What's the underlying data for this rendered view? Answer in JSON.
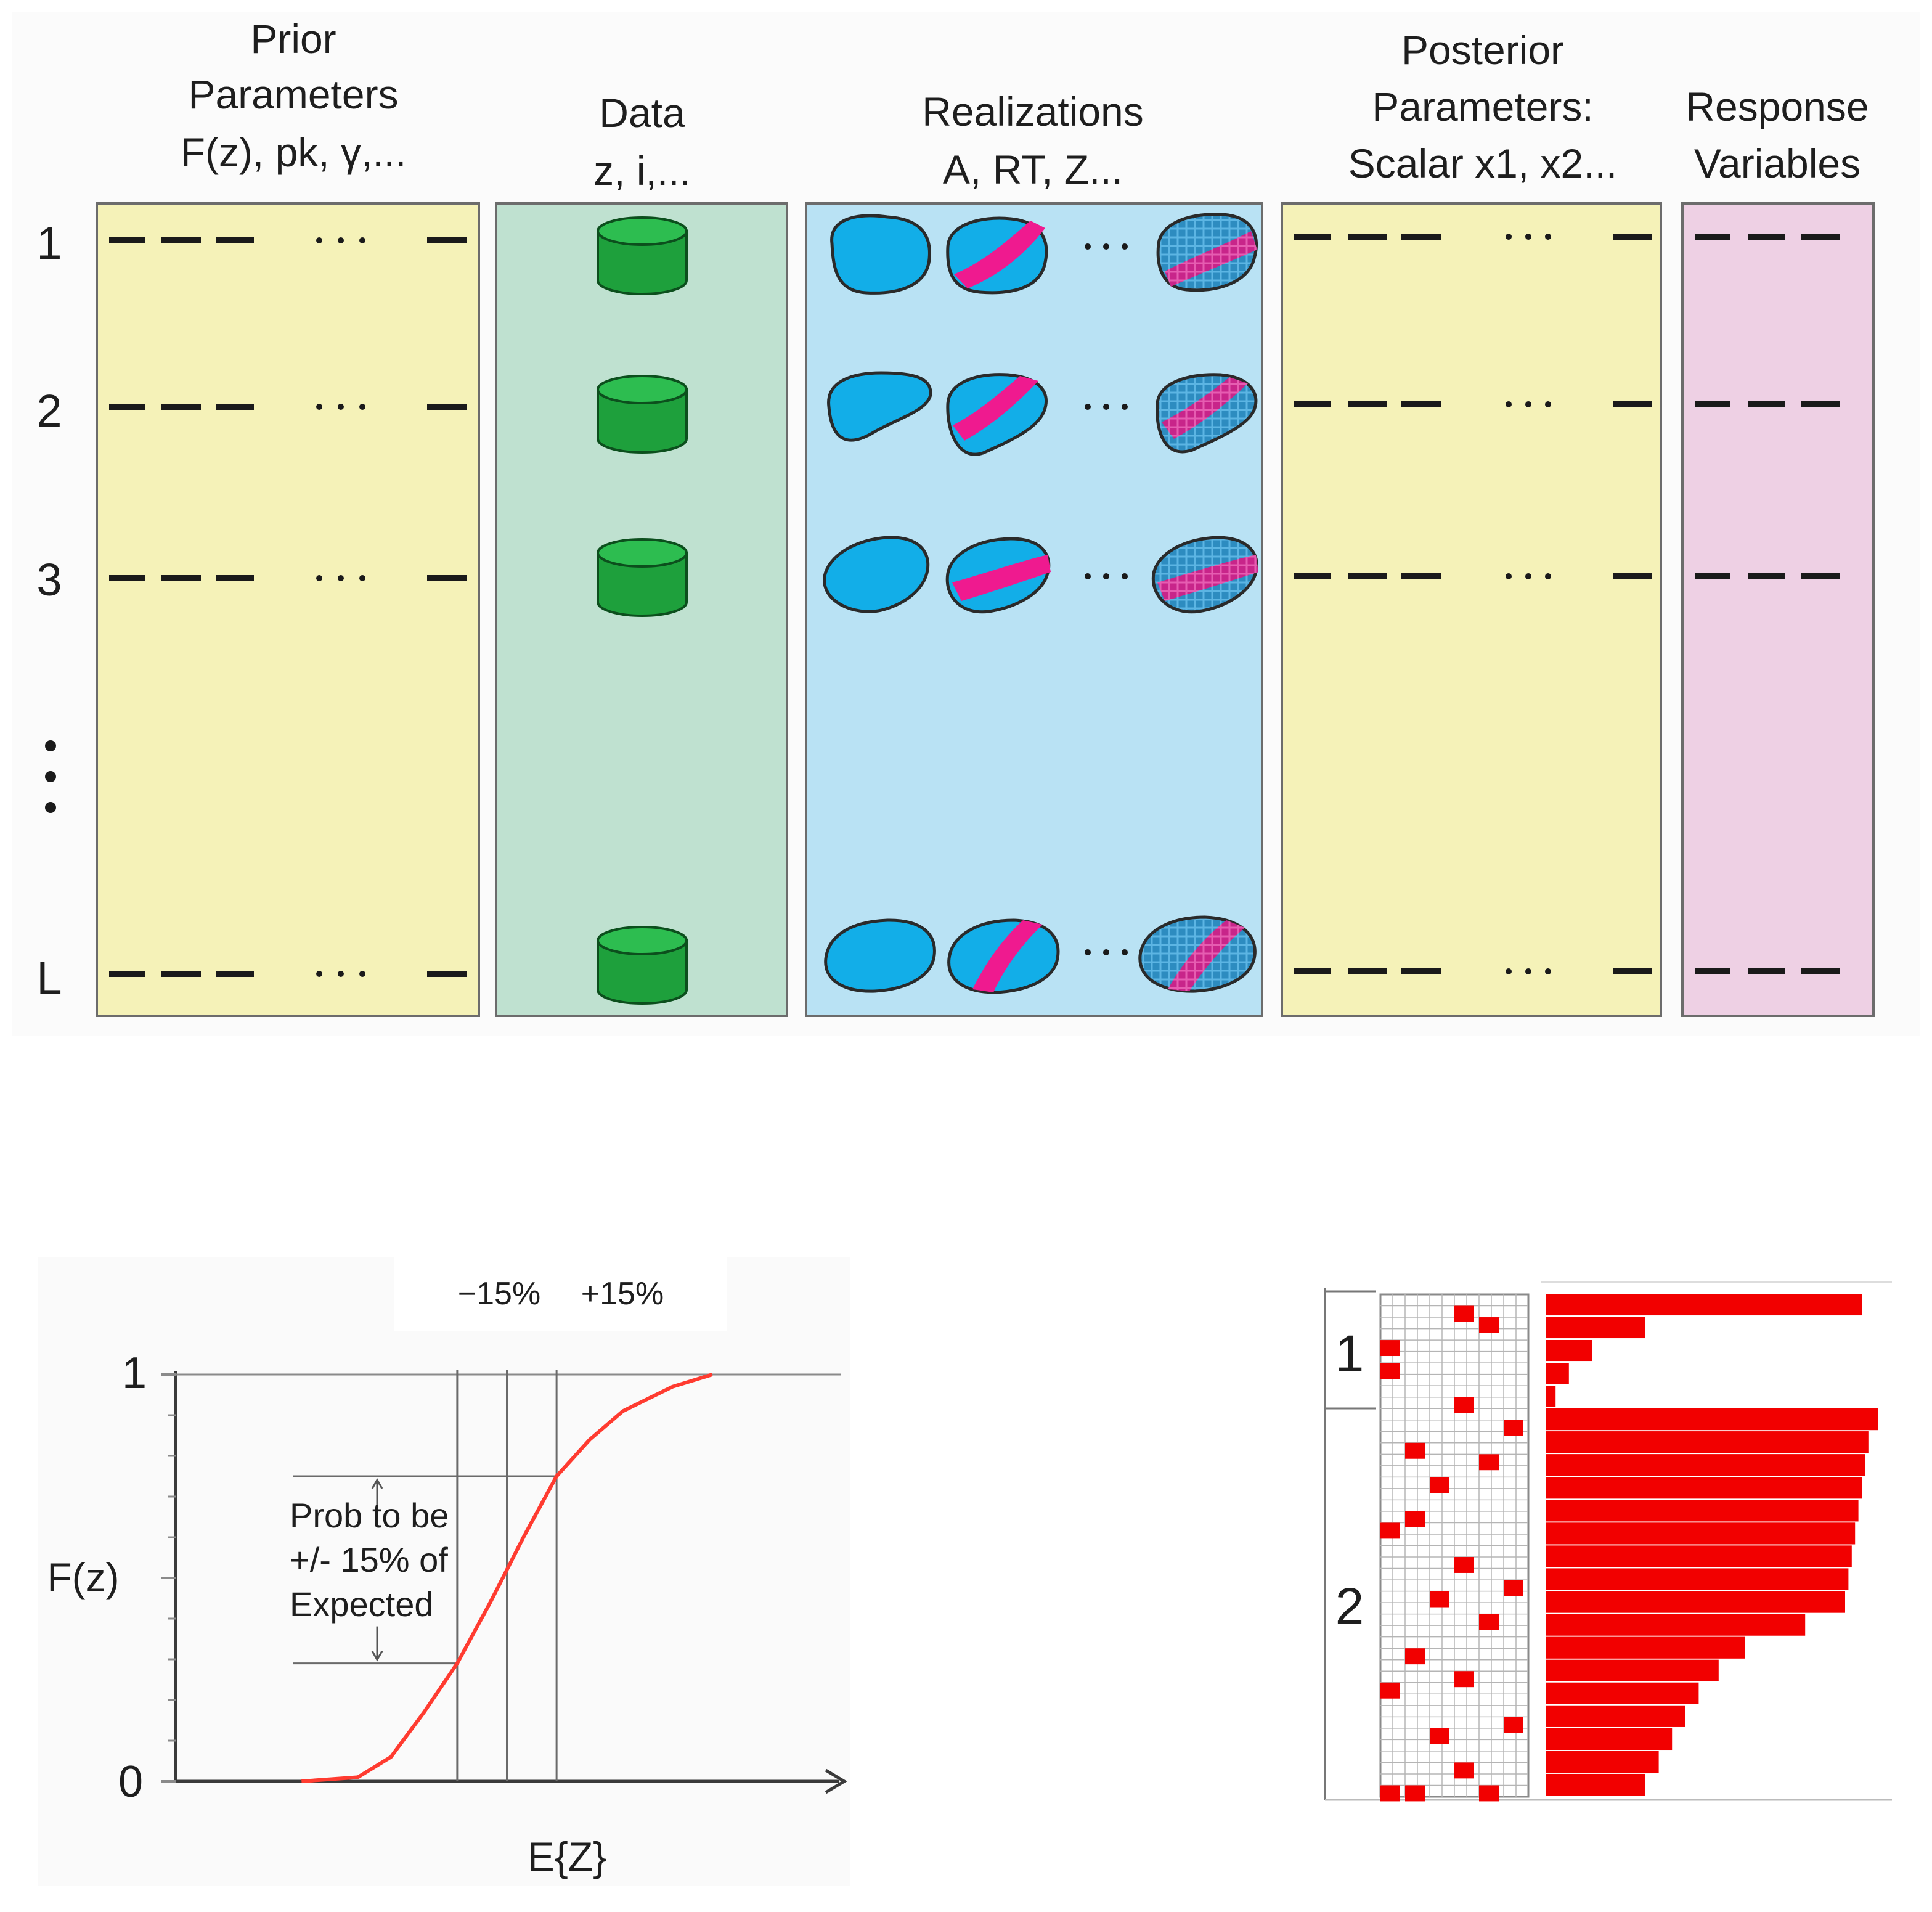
{
  "top_diagram": {
    "columns": [
      {
        "id": "prior",
        "title_lines": [
          "Prior",
          "Parameters",
          "F(z), pk, γ,..."
        ],
        "color": "#f5f2b8"
      },
      {
        "id": "data",
        "title_lines": [
          "Data",
          "z, i,..."
        ],
        "color": "#bfe1d0"
      },
      {
        "id": "realizations",
        "title_lines": [
          "Realizations",
          "A, RT, Z..."
        ],
        "color": "#b9e2f4"
      },
      {
        "id": "posterior",
        "title_lines": [
          "Posterior",
          "Parameters:",
          "Scalar x1, x2..."
        ],
        "color": "#f5f2b8"
      },
      {
        "id": "response",
        "title_lines": [
          "Response",
          "Variables"
        ],
        "color": "#eed0e4"
      }
    ],
    "rows": [
      "1",
      "2",
      "3",
      "L"
    ],
    "colors": {
      "cylinder": "#1ea03c",
      "cylinder_dark": "#0f7a2b",
      "blob": "#12aee8",
      "band": "#ef1a8f",
      "hatch": "#2a8fc2"
    }
  },
  "cdf_chart": {
    "ylabel": "F(z)",
    "xlabel": "E{Z}",
    "y_ticks": [
      "1",
      "0"
    ],
    "band_labels": [
      "−15%",
      "+15%"
    ],
    "annotation_lines": [
      "Prob to be",
      "+/- 15% of",
      "Expected"
    ],
    "curve_color": "#ff3b30"
  },
  "chart_data": {
    "type": "line",
    "title": "",
    "xlabel": "E{Z}",
    "ylabel": "F(z)",
    "ylim": [
      0,
      1
    ],
    "xlim": [
      -1,
      1
    ],
    "series": [
      {
        "name": "F(z)",
        "x": [
          -0.62,
          -0.45,
          -0.35,
          -0.25,
          -0.15,
          -0.05,
          0.0,
          0.05,
          0.15,
          0.25,
          0.35,
          0.5,
          0.62
        ],
        "values": [
          0.0,
          0.01,
          0.06,
          0.17,
          0.29,
          0.44,
          0.52,
          0.6,
          0.75,
          0.84,
          0.91,
          0.97,
          1.0
        ]
      }
    ],
    "annotations": [
      {
        "text": "−15%",
        "x": -0.15
      },
      {
        "text": "+15%",
        "x": 0.15
      },
      {
        "text": "Prob to be +/- 15% of Expected",
        "span_y": [
          0.29,
          0.75
        ]
      }
    ]
  },
  "grid_panel": {
    "group_labels": [
      "1",
      "2"
    ],
    "group_rows": [
      5,
      17
    ],
    "grid_cols": 6,
    "color": "#f20000",
    "marks": [
      [
        0,
        3
      ],
      [
        1,
        4
      ],
      [
        2,
        0
      ],
      [
        3,
        0
      ],
      [
        4,
        3
      ],
      [
        5,
        5
      ],
      [
        6,
        1
      ],
      [
        7,
        4
      ],
      [
        8,
        2
      ],
      [
        9,
        1
      ],
      [
        10,
        0
      ],
      [
        11,
        3
      ],
      [
        12,
        5
      ],
      [
        13,
        2
      ],
      [
        14,
        4
      ],
      [
        15,
        1
      ],
      [
        16,
        3
      ],
      [
        17,
        0
      ],
      [
        18,
        5
      ],
      [
        19,
        2
      ],
      [
        20,
        3
      ],
      [
        21,
        1
      ],
      [
        22,
        4
      ],
      [
        23,
        0
      ]
    ],
    "bars_group1": [
      0.95,
      0.3,
      0.14,
      0.07,
      0.03
    ],
    "bars_group2": [
      1.0,
      0.97,
      0.96,
      0.95,
      0.94,
      0.93,
      0.92,
      0.91,
      0.9,
      0.78,
      0.6,
      0.52,
      0.46,
      0.42,
      0.38,
      0.34,
      0.3
    ]
  }
}
